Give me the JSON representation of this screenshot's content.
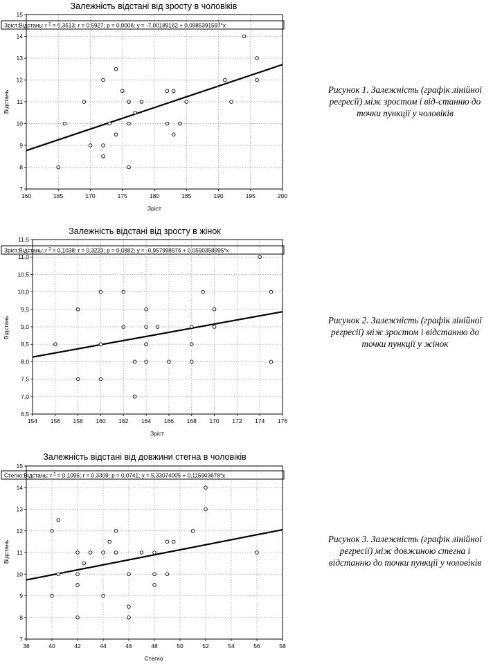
{
  "chart_data": [
    {
      "type": "scatter",
      "title": "Залежність відстані від зросту в чоловіків",
      "stats_label": "Зріст:Відстань:",
      "stats_r2": "0,3513",
      "stats_rest": "; r = 0,5927; p = 0,0006; y = -7,00189162 + 0,0985391597*x",
      "xlabel": "Зріст",
      "ylabel": "Відстань",
      "xlim": [
        160,
        200
      ],
      "ylim": [
        7,
        15
      ],
      "xticks": [
        "160",
        "165",
        "170",
        "175",
        "180",
        "185",
        "190",
        "195",
        "200"
      ],
      "yticks": [
        "7",
        "8",
        "9",
        "10",
        "11",
        "12",
        "13",
        "14",
        "15"
      ],
      "grid": true,
      "regression": {
        "intercept": -7.00189162,
        "slope": 0.0985391597
      },
      "points": [
        [
          165,
          8
        ],
        [
          166,
          10
        ],
        [
          169,
          11
        ],
        [
          170,
          9
        ],
        [
          172,
          12
        ],
        [
          172,
          9
        ],
        [
          172,
          8.5
        ],
        [
          173,
          10
        ],
        [
          174,
          12.5
        ],
        [
          174,
          9.5
        ],
        [
          175,
          11.5
        ],
        [
          176,
          11
        ],
        [
          176,
          11
        ],
        [
          176,
          10
        ],
        [
          176,
          8
        ],
        [
          177,
          10.5
        ],
        [
          178,
          11
        ],
        [
          182,
          11.5
        ],
        [
          182,
          10
        ],
        [
          183,
          11.5
        ],
        [
          183,
          9.5
        ],
        [
          184,
          10
        ],
        [
          184,
          10
        ],
        [
          185,
          11
        ],
        [
          191,
          12
        ],
        [
          192,
          11
        ],
        [
          194,
          14
        ],
        [
          196,
          13
        ],
        [
          196,
          12
        ]
      ]
    },
    {
      "type": "scatter",
      "title": "Залежність відстані від зросту в жінок",
      "stats_label": "Зріст:Відстань:",
      "stats_r2": "0,1038",
      "stats_rest": "; r = 0,3223; p = 0,0882; y = -0,957998576 + 0,0590358995*x",
      "xlabel": "Зріст",
      "ylabel": "Відстань",
      "xlim": [
        154,
        176
      ],
      "ylim": [
        6.5,
        11.5
      ],
      "xticks": [
        "154",
        "156",
        "158",
        "160",
        "162",
        "164",
        "166",
        "168",
        "170",
        "172",
        "174",
        "176"
      ],
      "yticks": [
        "6,5",
        "7,0",
        "7,5",
        "8,0",
        "8,5",
        "9,0",
        "9,5",
        "10,0",
        "10,5",
        "11,0",
        "11,5"
      ],
      "grid": true,
      "regression": {
        "intercept": -0.957998576,
        "slope": 0.0590358995
      },
      "points": [
        [
          156,
          8.5
        ],
        [
          158,
          9.5
        ],
        [
          158,
          7.5
        ],
        [
          160,
          10
        ],
        [
          160,
          8.5
        ],
        [
          160,
          7.5
        ],
        [
          162,
          10
        ],
        [
          162,
          9
        ],
        [
          163,
          8
        ],
        [
          163,
          7
        ],
        [
          164,
          9.5
        ],
        [
          164,
          9
        ],
        [
          164,
          8.5
        ],
        [
          164,
          8.5
        ],
        [
          164,
          8
        ],
        [
          165,
          9
        ],
        [
          166,
          8
        ],
        [
          168,
          9
        ],
        [
          168,
          8.5
        ],
        [
          168,
          8.5
        ],
        [
          168,
          8
        ],
        [
          169,
          10
        ],
        [
          170,
          9.5
        ],
        [
          170,
          9
        ],
        [
          174,
          11
        ],
        [
          175,
          10
        ],
        [
          175,
          8
        ]
      ]
    },
    {
      "type": "scatter",
      "title": "Залежність відстані від довжини стегна в чоловіків",
      "stats_label": "Стегно:Відстань:",
      "stats_r2": "0,1095",
      "stats_rest": "; r = 0,3309; p = 0,0741; y = 5,33074005 + 0,115903678*x",
      "xlabel": "Стегно",
      "ylabel": "Відстань",
      "xlim": [
        38,
        58
      ],
      "ylim": [
        7,
        15
      ],
      "xticks": [
        "38",
        "40",
        "42",
        "44",
        "46",
        "48",
        "50",
        "52",
        "54",
        "56",
        "58"
      ],
      "yticks": [
        "7",
        "8",
        "9",
        "10",
        "11",
        "12",
        "13",
        "14",
        "15"
      ],
      "grid": true,
      "regression": {
        "intercept": 5.33074005,
        "slope": 0.115903678
      },
      "points": [
        [
          40,
          12
        ],
        [
          40,
          9
        ],
        [
          40.5,
          12.5
        ],
        [
          40.5,
          10
        ],
        [
          42,
          11
        ],
        [
          42,
          10
        ],
        [
          42,
          9.5
        ],
        [
          42,
          8
        ],
        [
          42.5,
          10.5
        ],
        [
          43,
          11
        ],
        [
          44,
          11
        ],
        [
          44,
          9
        ],
        [
          44.5,
          11.5
        ],
        [
          45,
          12
        ],
        [
          45,
          11
        ],
        [
          46,
          10
        ],
        [
          46,
          8.5
        ],
        [
          46,
          8
        ],
        [
          47,
          11
        ],
        [
          48,
          11
        ],
        [
          48,
          10
        ],
        [
          48,
          9.5
        ],
        [
          49,
          11.5
        ],
        [
          49,
          10
        ],
        [
          49.5,
          11.5
        ],
        [
          51,
          12
        ],
        [
          52,
          14
        ],
        [
          52,
          13
        ],
        [
          56,
          11
        ]
      ]
    }
  ],
  "captions": [
    "Рисунок 1. Залежність (графік лінійної регресії) між зростом і від-станню до точки пункції у чоловіків",
    "Рисунок 2. Залежність (графік лінійної регресії) між зростом і відстанню до точки пункції у жінок",
    "Рисунок 3. Залежність (графік лінійної регресії) між довжиною стегна і відстанню до точки пункції у чоловіків"
  ]
}
